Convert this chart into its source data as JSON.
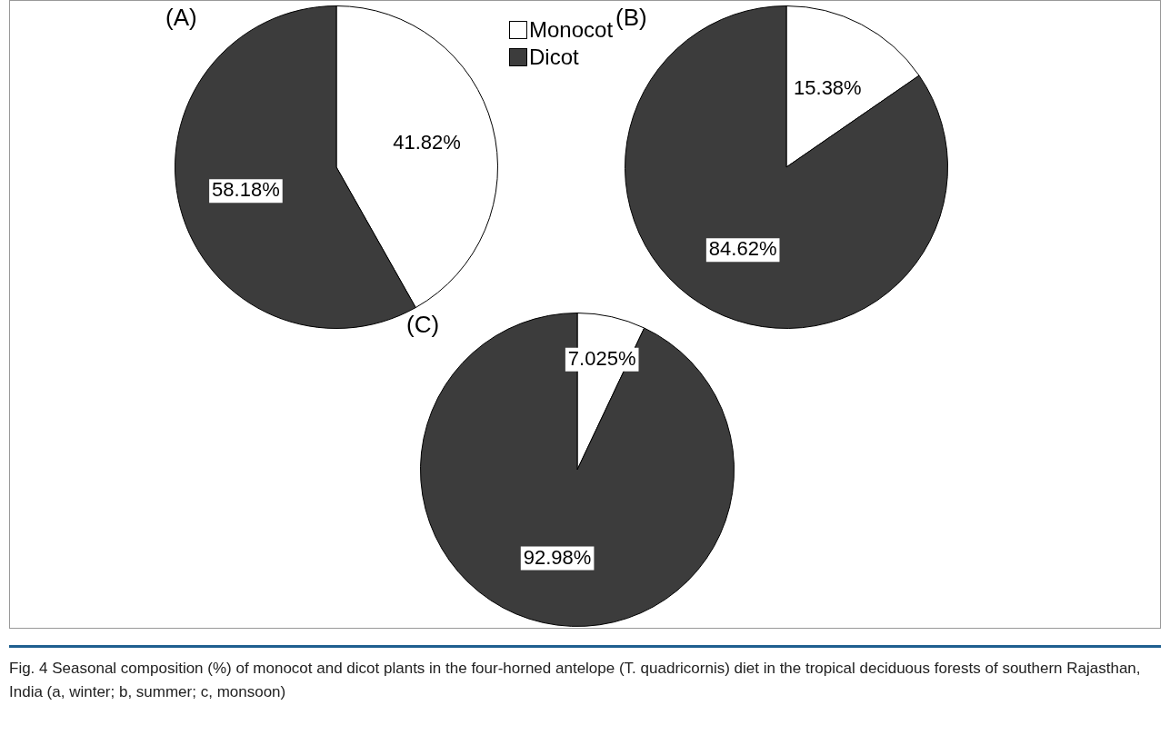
{
  "chart_data": [
    {
      "type": "pie",
      "title": "(A)",
      "categories": [
        "Monocot",
        "Dicot"
      ],
      "values": [
        41.82,
        58.18
      ],
      "value_labels": [
        "41.82%",
        "58.18%"
      ],
      "colors": [
        "#ffffff",
        "#3c3c3c"
      ],
      "legend": "top right",
      "annotations": [
        "Fig. 4 Seasonal composition (%) of monocot and dicot plants in the four-horned antelope (T. quadricornis) diet in the tropical deciduous forests of southern Rajasthan, India (a, winter; b, summer; c, monsoon)"
      ]
    },
    {
      "type": "pie",
      "title": "(B)",
      "categories": [
        null,
        null
      ],
      "values": [
        15.38,
        84.62
      ],
      "value_labels": [
        "15.38%",
        "84.62%"
      ],
      "colors": [
        "#ffffff",
        "#3c3c3c"
      ]
    },
    {
      "type": "pie",
      "title": "(C)",
      "categories": [
        null,
        null
      ],
      "values": [
        7.025,
        92.98
      ],
      "value_labels": [
        "7.025%",
        "92.98%"
      ],
      "colors": [
        "#ffffff",
        "#3c3c3c"
      ]
    }
  ]
}
